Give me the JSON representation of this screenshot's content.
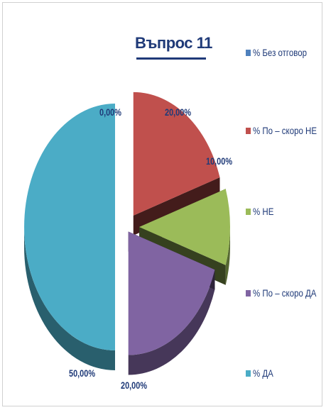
{
  "chart_data": {
    "type": "pie",
    "title": "Въпрос 11",
    "legend_position": "right",
    "slices": [
      {
        "name": "% Без отговор",
        "value": 0.0,
        "label": "0,00%",
        "color": "#4f81bd"
      },
      {
        "name": "% По – скоро НЕ",
        "value": 20.0,
        "label": "20,00%",
        "color": "#c0504d"
      },
      {
        "name": "% НЕ",
        "value": 10.0,
        "label": "10,00%",
        "color": "#9bbb59"
      },
      {
        "name": "% По – скоро  ДА",
        "value": 20.0,
        "label": "20,00%",
        "color": "#8064a2"
      },
      {
        "name": "% ДА",
        "value": 50.0,
        "label": "50,00%",
        "color": "#4bacc6"
      }
    ]
  }
}
